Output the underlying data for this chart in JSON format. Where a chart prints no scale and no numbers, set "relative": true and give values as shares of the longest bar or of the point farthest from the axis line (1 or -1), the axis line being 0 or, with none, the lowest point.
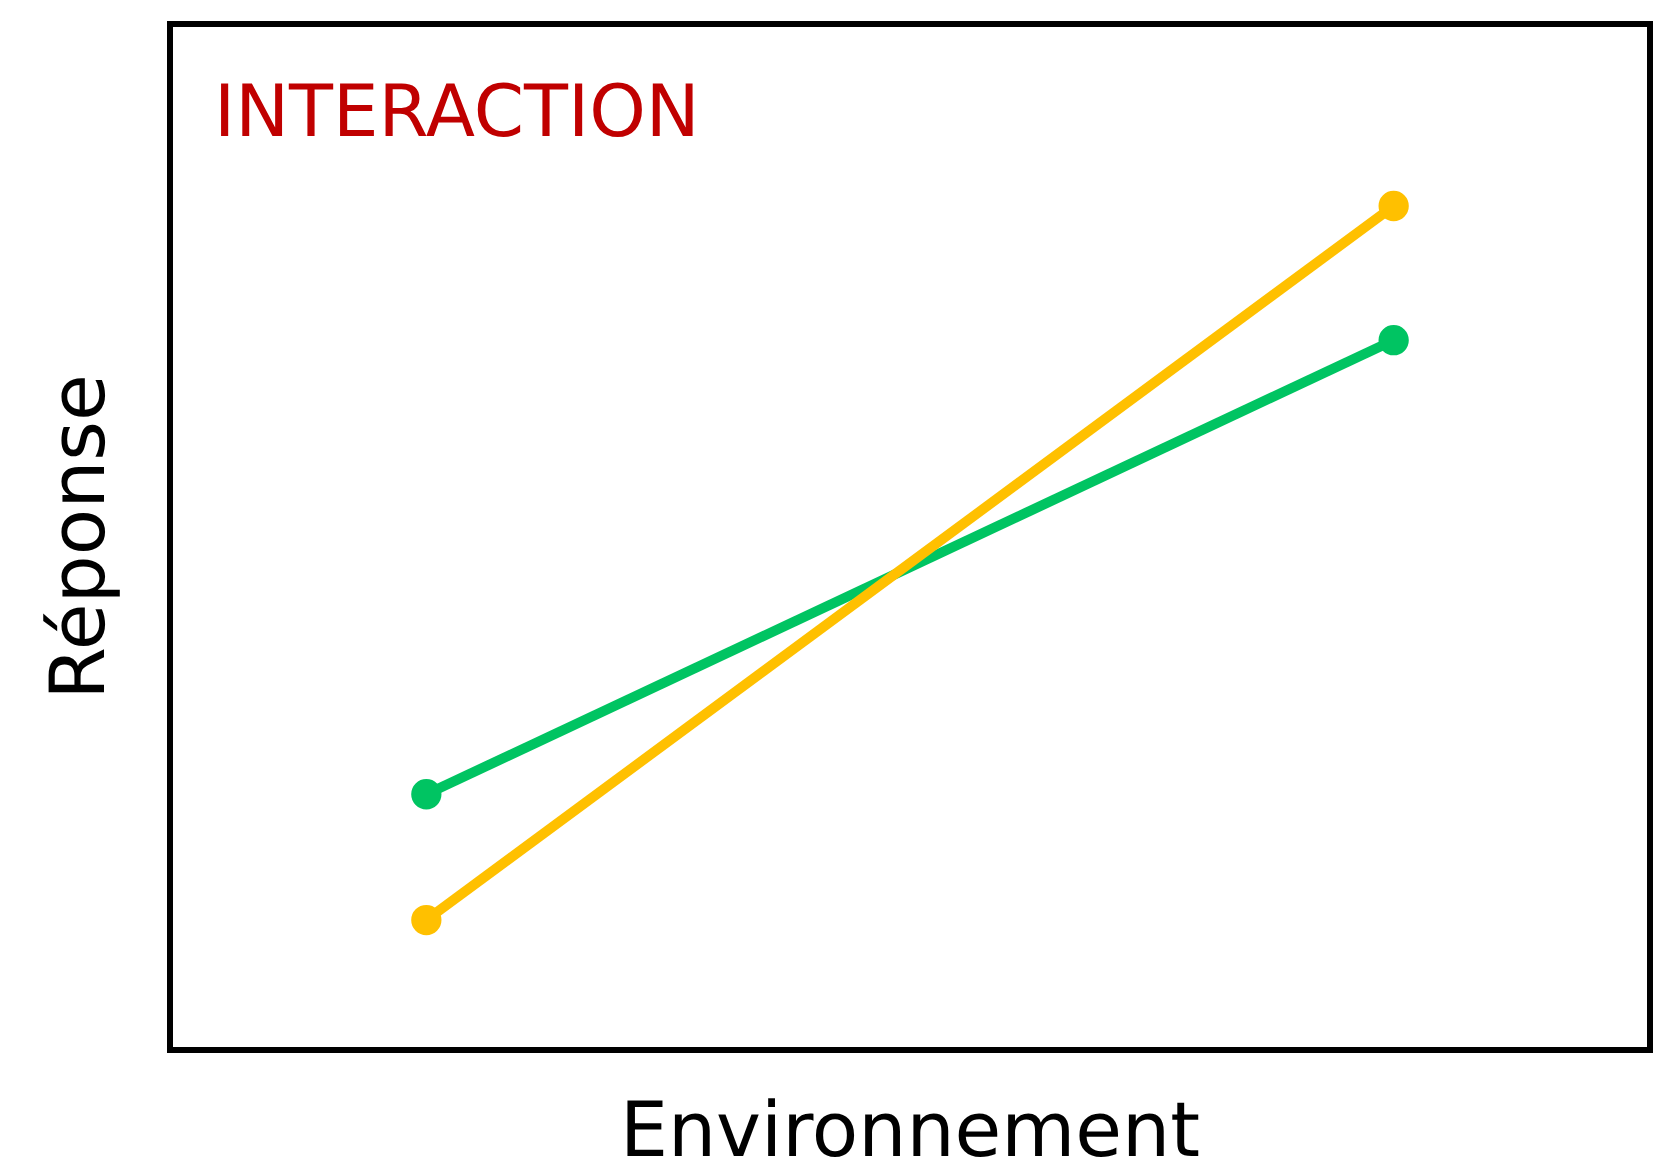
{
  "chart_data": {
    "type": "line",
    "title": "INTERACTION",
    "xlabel": "Environnement",
    "ylabel": "Réponse",
    "relative": true,
    "categories": [
      null,
      null
    ],
    "marker": "circle",
    "line_style": "solid",
    "series": [
      {
        "color": "#00c462",
        "values": [
          0.303,
          0.841
        ]
      },
      {
        "color": "#ffc000",
        "values": [
          0.154,
          1
        ]
      }
    ]
  }
}
